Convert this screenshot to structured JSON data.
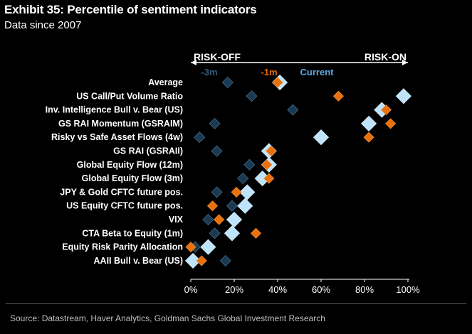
{
  "title": "Exhibit 35: Percentile of sentiment indicators",
  "subtitle": "Data since 2007",
  "source": "Source: Datastream, Haver Analytics, Goldman Sachs Global Investment Research",
  "colors": {
    "background": "#000000",
    "current": "#bfe3fb",
    "minus_1m": "#e8700d",
    "minus_3m": "#1b3a52",
    "axis": "#ffffff",
    "text": "#ffffff"
  },
  "chart_data": {
    "type": "scatter",
    "xlabel": "",
    "ylabel": "",
    "xlim": [
      0,
      100
    ],
    "x_ticks": [
      "0%",
      "20%",
      "40%",
      "60%",
      "80%",
      "100%"
    ],
    "x_tick_values": [
      0,
      20,
      40,
      60,
      80,
      100
    ],
    "direction_labels": {
      "left": "RISK-OFF",
      "right": "RISK-ON"
    },
    "legend": [
      "-3m",
      "-1m",
      "Current"
    ],
    "categories": [
      "Average",
      "US Call/Put Volume Ratio",
      "Inv. Intelligence Bull v. Bear (US)",
      "GS RAI Momentum (GSRAIM)",
      "Risky vs Safe Asset Flows (4w)",
      "GS RAI (GSRAII)",
      "Global Equity Flow (12m)",
      "Global Equity Flow (3m)",
      "JPY & Gold CFTC future pos.",
      "US Equity CFTC future pos.",
      "VIX",
      "CTA Beta to Equity (1m)",
      "Equity Risk Parity Allocation",
      "AAII Bull v. Bear (US)"
    ],
    "series": [
      {
        "name": "-3m",
        "values": [
          17,
          28,
          47,
          11,
          4,
          12,
          27,
          24,
          12,
          19,
          8,
          11,
          2,
          16
        ]
      },
      {
        "name": "-1m",
        "values": [
          40,
          68,
          90,
          92,
          82,
          37,
          35,
          36,
          21,
          10,
          13,
          30,
          0,
          5
        ]
      },
      {
        "name": "Current",
        "values": [
          41,
          98,
          88,
          82,
          60,
          36,
          36,
          33,
          26,
          25,
          20,
          19,
          8,
          1
        ]
      }
    ]
  }
}
